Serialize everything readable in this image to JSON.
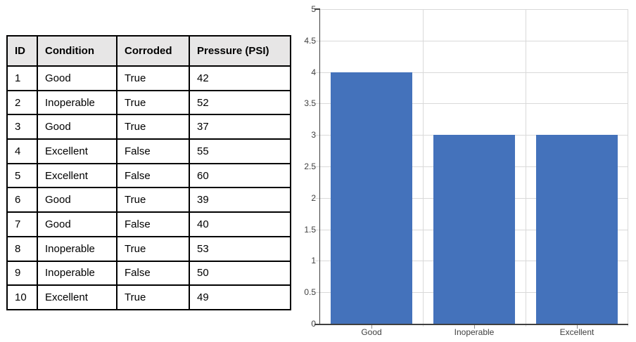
{
  "table": {
    "headers": [
      "ID",
      "Condition",
      "Corroded",
      "Pressure (PSI)"
    ],
    "rows": [
      [
        "1",
        "Good",
        "True",
        "42"
      ],
      [
        "2",
        "Inoperable",
        "True",
        "52"
      ],
      [
        "3",
        "Good",
        "True",
        "37"
      ],
      [
        "4",
        "Excellent",
        "False",
        "55"
      ],
      [
        "5",
        "Excellent",
        "False",
        "60"
      ],
      [
        "6",
        "Good",
        "True",
        "39"
      ],
      [
        "7",
        "Good",
        "False",
        "40"
      ],
      [
        "8",
        "Inoperable",
        "True",
        "53"
      ],
      [
        "9",
        "Inoperable",
        "False",
        "50"
      ],
      [
        "10",
        "Excellent",
        "True",
        "49"
      ]
    ],
    "header_bg": "#e7e6e6",
    "border_color": "#000000"
  },
  "chart_data": {
    "type": "bar",
    "categories": [
      "Good",
      "Inoperable",
      "Excellent"
    ],
    "values": [
      4,
      3,
      3
    ],
    "title": "",
    "xlabel": "",
    "ylabel": "",
    "ylim": [
      0,
      5
    ],
    "ytick_step": 0.5,
    "yticks": [
      "0",
      "0.5",
      "1",
      "1.5",
      "2",
      "2.5",
      "3",
      "3.5",
      "4",
      "4.5",
      "5"
    ],
    "grid": true,
    "legend": false,
    "bar_color": "#4472bb",
    "gridline_color": "#d9d9d9",
    "axis_color": "#404040",
    "tick_color": "#8c8c8c",
    "label_color": "#404040"
  }
}
